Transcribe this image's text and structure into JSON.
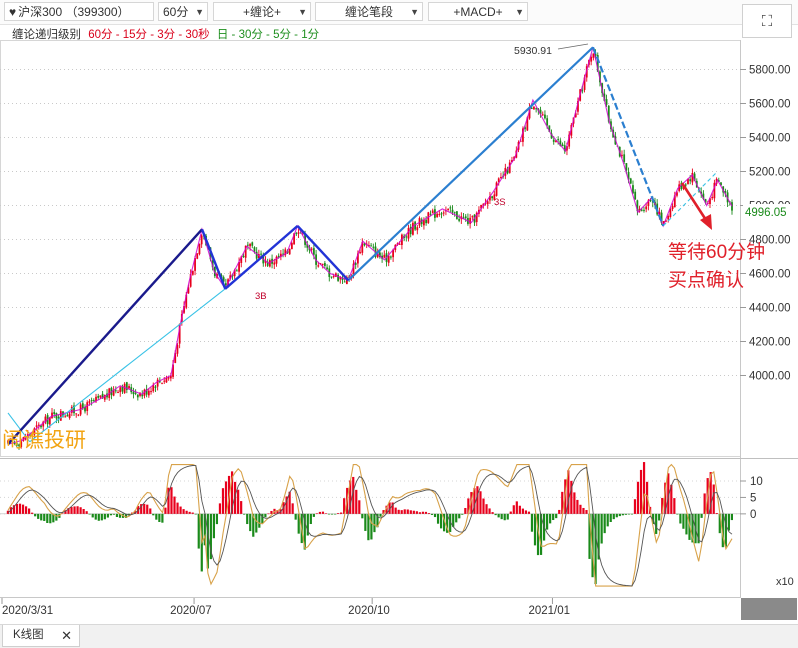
{
  "toolbar": {
    "symbol": "沪深300 （399300）",
    "period": "60分",
    "chanlun": "+缠论+",
    "chanlun_stroke": "缠论笔段",
    "macd": "+MACD+"
  },
  "legend": {
    "prefix": "缠论递归级别",
    "red_part": "60分 - 15分 - 3分 - 30秒",
    "green_part": "日 - 30分 - 5分 - 1分"
  },
  "annotations": {
    "peak_label": "5930.91",
    "current_price": "4996.05",
    "note_line1": "等待60分钟",
    "note_line2": "买点确认",
    "watermark": "闹谯投研",
    "signal_3b": "3B",
    "signal_3s": "3S",
    "macd_unit": "x10"
  },
  "colors": {
    "up": "#e8001c",
    "down": "#1a8a1a",
    "stroke_dark": "#1a1a8c",
    "stroke_blue": "#2233d6",
    "segment": "#2b7fd0",
    "trend_light": "#39c2e6",
    "magenta": "#d000d0",
    "dif": "#d8a24a",
    "dea": "#555555",
    "note": "#e0202a",
    "watermark": "#f2a413"
  },
  "tab": {
    "label": "K线图",
    "close": "✕"
  },
  "chart_data": [
    {
      "type": "line",
      "title": "",
      "series_kind": "candlestick (60-minute)",
      "x_ticks": [
        "2020/3/31",
        "2020/07",
        "2020/10",
        "2021/01"
      ],
      "ylim": [
        3550,
        5950
      ],
      "y_ticks": [
        4000,
        4200,
        4400,
        4600,
        4800,
        5000,
        5200,
        5400,
        5600,
        5800
      ],
      "grid": "dotted horizontal",
      "price_path": [
        {
          "t": 0.0,
          "p": 3595
        },
        {
          "t": 0.02,
          "p": 3620
        },
        {
          "t": 0.06,
          "p": 3760
        },
        {
          "t": 0.1,
          "p": 3800
        },
        {
          "t": 0.135,
          "p": 3880
        },
        {
          "t": 0.155,
          "p": 3940
        },
        {
          "t": 0.185,
          "p": 3890
        },
        {
          "t": 0.205,
          "p": 3960
        },
        {
          "t": 0.225,
          "p": 4000
        },
        {
          "t": 0.238,
          "p": 4300
        },
        {
          "t": 0.25,
          "p": 4550
        },
        {
          "t": 0.268,
          "p": 4860
        },
        {
          "t": 0.285,
          "p": 4610
        },
        {
          "t": 0.3,
          "p": 4510
        },
        {
          "t": 0.33,
          "p": 4760
        },
        {
          "t": 0.36,
          "p": 4660
        },
        {
          "t": 0.385,
          "p": 4720
        },
        {
          "t": 0.4,
          "p": 4880
        },
        {
          "t": 0.425,
          "p": 4680
        },
        {
          "t": 0.445,
          "p": 4600
        },
        {
          "t": 0.47,
          "p": 4560
        },
        {
          "t": 0.49,
          "p": 4790
        },
        {
          "t": 0.52,
          "p": 4680
        },
        {
          "t": 0.56,
          "p": 4880
        },
        {
          "t": 0.6,
          "p": 4980
        },
        {
          "t": 0.64,
          "p": 4900
        },
        {
          "t": 0.67,
          "p": 5080
        },
        {
          "t": 0.7,
          "p": 5280
        },
        {
          "t": 0.725,
          "p": 5620
        },
        {
          "t": 0.75,
          "p": 5420
        },
        {
          "t": 0.77,
          "p": 5320
        },
        {
          "t": 0.79,
          "p": 5650
        },
        {
          "t": 0.808,
          "p": 5930.91
        },
        {
          "t": 0.83,
          "p": 5500
        },
        {
          "t": 0.85,
          "p": 5250
        },
        {
          "t": 0.87,
          "p": 4960
        },
        {
          "t": 0.89,
          "p": 5050
        },
        {
          "t": 0.905,
          "p": 4880
        },
        {
          "t": 0.925,
          "p": 5100
        },
        {
          "t": 0.945,
          "p": 5180
        },
        {
          "t": 0.965,
          "p": 5000
        },
        {
          "t": 0.98,
          "p": 5150
        },
        {
          "t": 1.0,
          "p": 4996.05
        }
      ],
      "strokes": [
        {
          "name": "up-stroke-1",
          "from": {
            "t": 0.0,
            "p": 3595
          },
          "to": {
            "t": 0.268,
            "p": 4860
          }
        },
        {
          "name": "down-stroke-1",
          "from": {
            "t": 0.268,
            "p": 4860
          },
          "to": {
            "t": 0.3,
            "p": 4510
          }
        },
        {
          "name": "up-stroke-2",
          "from": {
            "t": 0.3,
            "p": 4510
          },
          "to": {
            "t": 0.4,
            "p": 4880
          }
        },
        {
          "name": "down-stroke-2",
          "from": {
            "t": 0.4,
            "p": 4880
          },
          "to": {
            "t": 0.47,
            "p": 4560
          }
        }
      ],
      "segment": [
        {
          "t": 0.47,
          "p": 4560
        },
        {
          "t": 0.808,
          "p": 5930.91
        },
        {
          "t": 0.905,
          "p": 4880
        }
      ],
      "trendlines": [
        {
          "from": {
            "t": 0.0,
            "p": 3780
          },
          "to": {
            "t": 0.03,
            "p": 3610
          }
        },
        {
          "from": {
            "t": 0.03,
            "p": 3610
          },
          "to": {
            "t": 0.3,
            "p": 4510
          }
        },
        {
          "from": {
            "t": 0.905,
            "p": 4880
          },
          "to": {
            "t": 0.98,
            "p": 5200
          }
        }
      ],
      "signals": [
        {
          "label": "3B",
          "t": 0.36,
          "p": 4400
        },
        {
          "label": "3S",
          "t": 0.684,
          "p": 5020
        }
      ]
    },
    {
      "type": "bar",
      "title": "",
      "indicator": "MACD",
      "ylim": [
        -25,
        17
      ],
      "y_ticks": [
        10,
        5,
        0
      ],
      "unit_label": "x10"
    }
  ]
}
